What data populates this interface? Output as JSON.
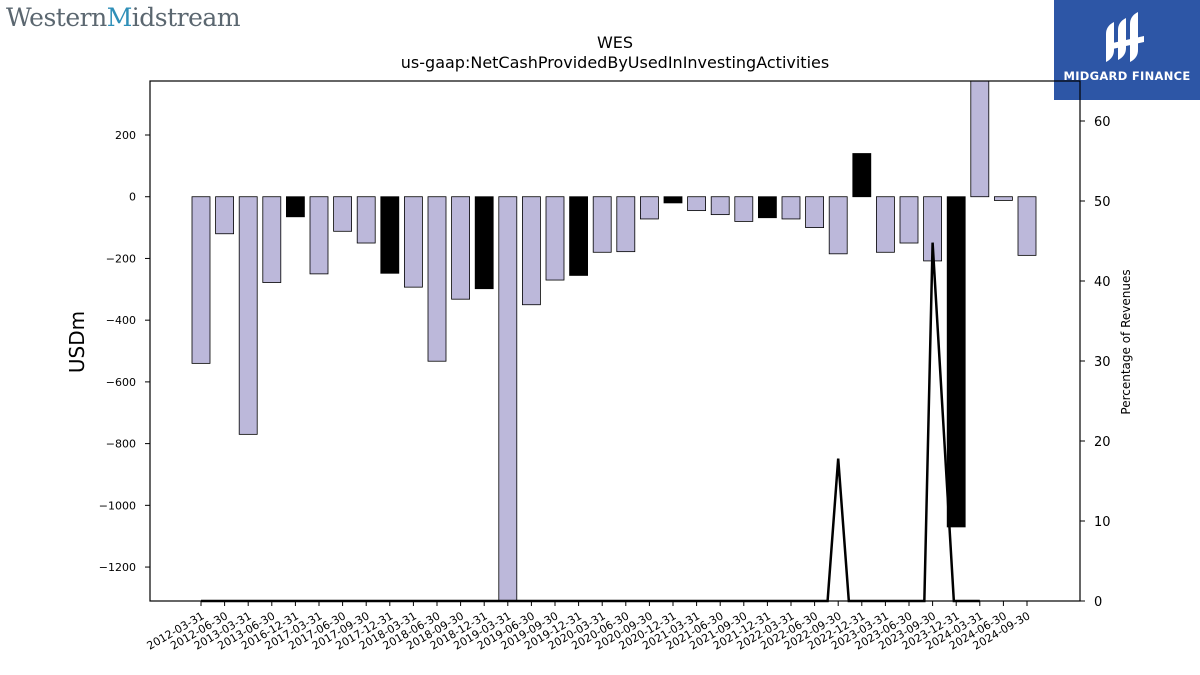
{
  "branding": {
    "left_logo_text_1": "Western ",
    "left_logo_text_2": "M",
    "left_logo_text_3": "idstream",
    "right_logo_text": "MIDGARD FINANCE"
  },
  "chart_data": {
    "type": "bar",
    "title": "WES",
    "subtitle": "us-gaap:NetCashProvidedByUsedInInvestingActivities",
    "ylabel": "USDm",
    "y2label": "Percentage of Revenues",
    "ylim": [
      -1310,
      375
    ],
    "y2lim": [
      0,
      65
    ],
    "yticks": [
      200,
      0,
      -200,
      -400,
      -600,
      -800,
      -1000,
      -1200
    ],
    "y2ticks": [
      0,
      10,
      20,
      30,
      40,
      50,
      60
    ],
    "colors": {
      "bar_default": "#bcb8da",
      "bar_q4": "#000000",
      "line": "#000000"
    },
    "categories": [
      "2012-03-31",
      "2012-06-30",
      "2013-03-31",
      "2013-06-30",
      "2016-12-31",
      "2017-03-31",
      "2017-06-30",
      "2017-09-30",
      "2017-12-31",
      "2018-03-31",
      "2018-06-30",
      "2018-09-30",
      "2018-12-31",
      "2019-03-31",
      "2019-06-30",
      "2019-09-30",
      "2019-12-31",
      "2020-03-31",
      "2020-06-30",
      "2020-09-30",
      "2020-12-31",
      "2021-03-31",
      "2021-06-30",
      "2021-09-30",
      "2021-12-31",
      "2022-03-31",
      "2022-06-30",
      "2022-09-30",
      "2022-12-31",
      "2023-03-31",
      "2023-06-30",
      "2023-09-30",
      "2023-12-31",
      "2024-03-31",
      "2024-06-30",
      "2024-09-30"
    ],
    "values": [
      -540,
      -120,
      -770,
      -278,
      -65,
      -250,
      -112,
      -150,
      -248,
      -293,
      -533,
      -332,
      -298,
      -1310,
      -350,
      -270,
      -255,
      -180,
      -178,
      -72,
      -20,
      -45,
      -58,
      -80,
      -68,
      -72,
      -100,
      -185,
      140,
      -180,
      -150,
      -208,
      -1070,
      380,
      -12,
      -190
    ],
    "series": [
      {
        "name": "",
        "axis": "secondary",
        "points": [
          [
            0,
            0
          ],
          [
            1,
            0
          ],
          [
            2,
            0
          ],
          [
            3,
            0
          ],
          [
            4,
            0
          ],
          [
            5,
            0
          ],
          [
            6,
            0
          ],
          [
            7,
            0
          ],
          [
            8,
            0
          ],
          [
            9,
            0
          ],
          [
            10,
            0
          ],
          [
            11,
            0
          ],
          [
            12,
            0
          ],
          [
            13,
            0
          ],
          [
            14,
            0
          ],
          [
            15,
            0
          ],
          [
            16,
            0
          ],
          [
            17,
            0
          ],
          [
            18,
            0
          ],
          [
            19,
            0
          ],
          [
            20,
            0
          ],
          [
            21,
            0
          ],
          [
            22,
            0
          ],
          [
            23,
            0
          ],
          [
            24,
            0
          ],
          [
            25,
            0
          ],
          [
            26,
            0
          ],
          [
            26.55,
            0
          ],
          [
            27,
            17.8
          ],
          [
            27.45,
            0
          ],
          [
            28,
            0
          ],
          [
            29,
            0
          ],
          [
            30,
            0
          ],
          [
            30.65,
            0
          ],
          [
            31,
            44.8
          ],
          [
            31.9,
            0
          ],
          [
            32,
            0
          ],
          [
            33,
            0
          ]
        ]
      }
    ]
  }
}
